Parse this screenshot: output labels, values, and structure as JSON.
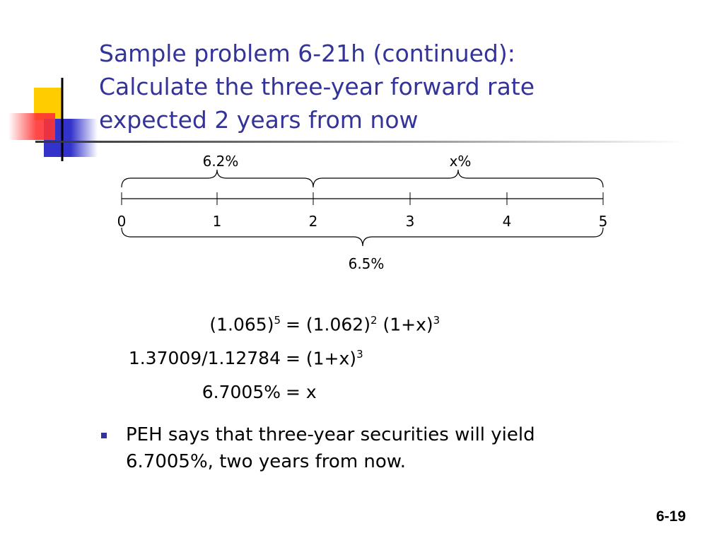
{
  "header": {
    "title_lines": [
      "Sample problem 6-21h (continued):",
      "Calculate the three-year forward rate",
      "expected 2 years from now"
    ]
  },
  "timeline": {
    "ticks": [
      "0",
      "1",
      "2",
      "3",
      "4",
      "5"
    ],
    "upper_braces": [
      "6.2%",
      "x%"
    ],
    "lower_brace": "6.5%"
  },
  "equations": [
    {
      "left": [
        {
          "base": "(1.065)",
          "sup": "5"
        }
      ],
      "right": [
        {
          "base": "= (1.062)",
          "sup": "2"
        },
        {
          "base": "(1+x)",
          "sup": "3"
        }
      ]
    },
    {
      "left": [
        {
          "base": "1.37009/1.12784"
        }
      ],
      "right": [
        {
          "base": "= (1+x)",
          "sup": "3"
        }
      ]
    },
    {
      "left": [
        {
          "base": "6.7005%"
        }
      ],
      "right": [
        {
          "base": "= x"
        }
      ]
    }
  ],
  "bullets": [
    "PEH says that three-year securities will yield 6.7005%, two years from now."
  ],
  "footer": {
    "page_number": "6-19"
  }
}
